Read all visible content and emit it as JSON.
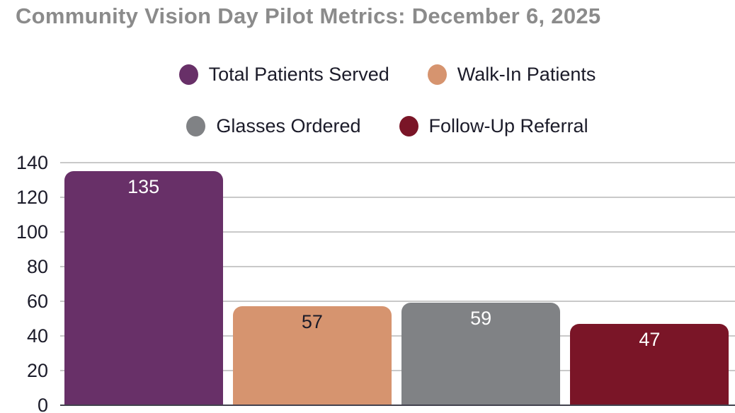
{
  "title": {
    "text": "Community Vision Day Pilot Metrics: December 6, 2025",
    "color": "#8b8b8b"
  },
  "legend": {
    "rows": [
      [
        {
          "label": "Total Patients Served",
          "color": "#683068"
        },
        {
          "label": "Walk-In Patients",
          "color": "#d6946f"
        }
      ],
      [
        {
          "label": "Glasses Ordered",
          "color": "#808285"
        },
        {
          "label": "Follow-Up Referral",
          "color": "#7a1527"
        }
      ]
    ]
  },
  "chart_data": {
    "type": "bar",
    "title": "Community Vision Day Pilot Metrics: December 6, 2025",
    "categories": [
      "Total Patients Served",
      "Walk-In Patients",
      "Glasses Ordered",
      "Follow-Up Referral"
    ],
    "values": [
      135,
      57,
      59,
      47
    ],
    "bar_colors": [
      "#683068",
      "#d6946f",
      "#808285",
      "#7a1527"
    ],
    "value_label_colors": [
      "#ffffff",
      "#1b1b29",
      "#ffffff",
      "#ffffff"
    ],
    "ylim": [
      0,
      140
    ],
    "yticks": [
      0,
      20,
      40,
      60,
      80,
      100,
      120,
      140
    ],
    "grid": true,
    "gridline_color": "#c9c9c9",
    "axis_line_color": "#42424e",
    "tick_label_color": "#1b1b29",
    "legend_position": "top",
    "value_labels_inside_bars": true
  }
}
